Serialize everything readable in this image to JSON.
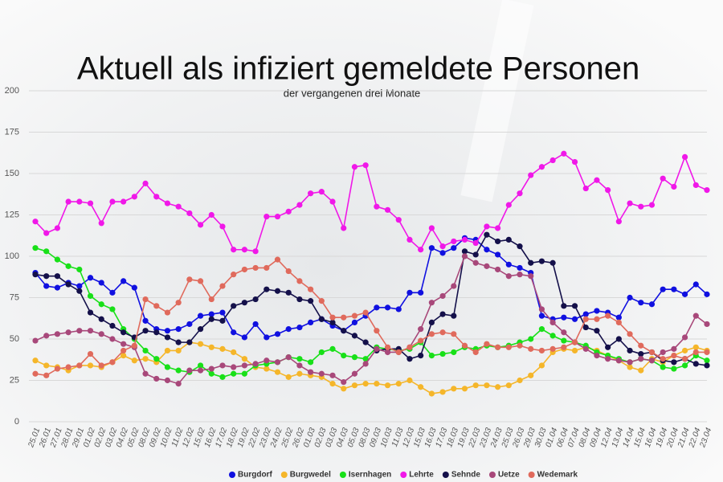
{
  "chart_data": {
    "type": "line",
    "title": "Aktuell als infiziert gemeldete Personen",
    "subtitle": "der vergangenen drei Monate",
    "categories": [
      "25.01",
      "26.01",
      "27.01",
      "28.01",
      "29.01",
      "01.02",
      "02.02",
      "03.02",
      "04.02",
      "05.02",
      "08.02",
      "09.02",
      "10.02",
      "11.02",
      "12.02",
      "15.02",
      "16.02",
      "17.02",
      "18.02",
      "19.02",
      "22.02",
      "23.02",
      "24.02",
      "25.02",
      "26.02",
      "01.03",
      "02.03",
      "03.03",
      "04.03",
      "05.03",
      "08.03",
      "09.03",
      "10.03",
      "11.03",
      "12.03",
      "15.03",
      "16.03",
      "17.03",
      "18.03",
      "19.03",
      "22.03",
      "23.03",
      "24.03",
      "25.03",
      "26.03",
      "29.03",
      "30.03",
      "01.04",
      "06.04",
      "07.04",
      "08.04",
      "09.04",
      "12.04",
      "13.04",
      "14.04",
      "15.04",
      "16.04",
      "19.04",
      "20.04",
      "21.04",
      "22.04",
      "23.04"
    ],
    "ylim": [
      0,
      200
    ],
    "yticks": [
      0,
      25,
      50,
      75,
      100,
      125,
      150,
      175,
      200
    ],
    "series": [
      {
        "name": "Burgdorf",
        "color": "#1010e0",
        "values": [
          90,
          82,
          81,
          84,
          82,
          87,
          84,
          78,
          85,
          81,
          61,
          56,
          55,
          56,
          59,
          64,
          65,
          66,
          54,
          51,
          59,
          51,
          53,
          56,
          57,
          60,
          62,
          58,
          55,
          60,
          64,
          69,
          69,
          68,
          78,
          78,
          105,
          102,
          105,
          111,
          110,
          104,
          101,
          95,
          93,
          90,
          64,
          62,
          63,
          62,
          65,
          67,
          66,
          63,
          75,
          72,
          71,
          80,
          80,
          77,
          83,
          77
        ]
      },
      {
        "name": "Burgwedel",
        "color": "#f5b62a",
        "values": [
          37,
          34,
          33,
          31,
          34,
          34,
          33,
          36,
          40,
          37,
          38,
          36,
          43,
          43,
          48,
          47,
          45,
          44,
          42,
          38,
          33,
          32,
          30,
          27,
          29,
          28,
          27,
          23,
          20,
          22,
          23,
          23,
          22,
          23,
          25,
          21,
          17,
          18,
          20,
          20,
          22,
          22,
          21,
          22,
          25,
          28,
          34,
          42,
          44,
          43,
          45,
          43,
          40,
          37,
          33,
          31,
          38,
          36,
          40,
          43,
          45,
          43
        ]
      },
      {
        "name": "Isernhagen",
        "color": "#18e018",
        "values": [
          105,
          103,
          98,
          94,
          92,
          76,
          71,
          68,
          56,
          50,
          43,
          38,
          33,
          31,
          30,
          34,
          29,
          27,
          29,
          29,
          34,
          35,
          36,
          39,
          38,
          36,
          42,
          44,
          40,
          39,
          38,
          45,
          44,
          43,
          44,
          48,
          40,
          41,
          42,
          45,
          44,
          46,
          45,
          46,
          48,
          50,
          56,
          52,
          49,
          48,
          46,
          42,
          40,
          38,
          36,
          38,
          37,
          33,
          32,
          34,
          40,
          37
        ]
      },
      {
        "name": "Lehrte",
        "color": "#f018e8",
        "values": [
          121,
          114,
          117,
          133,
          133,
          132,
          120,
          133,
          133,
          136,
          144,
          136,
          132,
          130,
          126,
          119,
          125,
          118,
          104,
          104,
          103,
          124,
          124,
          127,
          131,
          138,
          139,
          133,
          117,
          154,
          155,
          130,
          128,
          122,
          110,
          104,
          117,
          106,
          109,
          110,
          108,
          118,
          117,
          131,
          138,
          149,
          154,
          158,
          162,
          157,
          141,
          146,
          140,
          121,
          132,
          130,
          131,
          147,
          142,
          160,
          143,
          140
        ]
      },
      {
        "name": "Sehnde",
        "color": "#14104a",
        "values": [
          89,
          88,
          88,
          83,
          79,
          66,
          62,
          58,
          54,
          51,
          55,
          54,
          51,
          48,
          48,
          56,
          62,
          61,
          70,
          72,
          74,
          80,
          79,
          78,
          74,
          73,
          62,
          60,
          55,
          52,
          48,
          43,
          44,
          44,
          38,
          40,
          60,
          65,
          64,
          103,
          101,
          113,
          109,
          110,
          106,
          96,
          97,
          96,
          70,
          70,
          57,
          55,
          45,
          50,
          43,
          41,
          42,
          37,
          36,
          38,
          35,
          34
        ]
      },
      {
        "name": "Uetze",
        "color": "#a8487a",
        "values": [
          49,
          52,
          53,
          54,
          55,
          55,
          53,
          50,
          47,
          45,
          29,
          26,
          25,
          23,
          31,
          31,
          32,
          34,
          33,
          34,
          35,
          37,
          36,
          39,
          34,
          30,
          29,
          28,
          24,
          29,
          35,
          44,
          42,
          42,
          45,
          56,
          72,
          76,
          82,
          100,
          96,
          94,
          92,
          88,
          89,
          88,
          68,
          60,
          54,
          48,
          44,
          40,
          38,
          37,
          36,
          38,
          37,
          42,
          44,
          51,
          64,
          59
        ]
      },
      {
        "name": "Wedemark",
        "color": "#e06a5c",
        "values": [
          29,
          28,
          32,
          33,
          34,
          41,
          34,
          36,
          43,
          46,
          74,
          70,
          66,
          72,
          86,
          85,
          74,
          82,
          89,
          92,
          93,
          93,
          98,
          91,
          85,
          80,
          73,
          63,
          63,
          64,
          66,
          55,
          45,
          42,
          45,
          49,
          53,
          54,
          53,
          46,
          42,
          47,
          45,
          45,
          46,
          44,
          43,
          44,
          45,
          48,
          62,
          62,
          64,
          60,
          53,
          46,
          42,
          38,
          40,
          38,
          42,
          42
        ]
      }
    ]
  }
}
